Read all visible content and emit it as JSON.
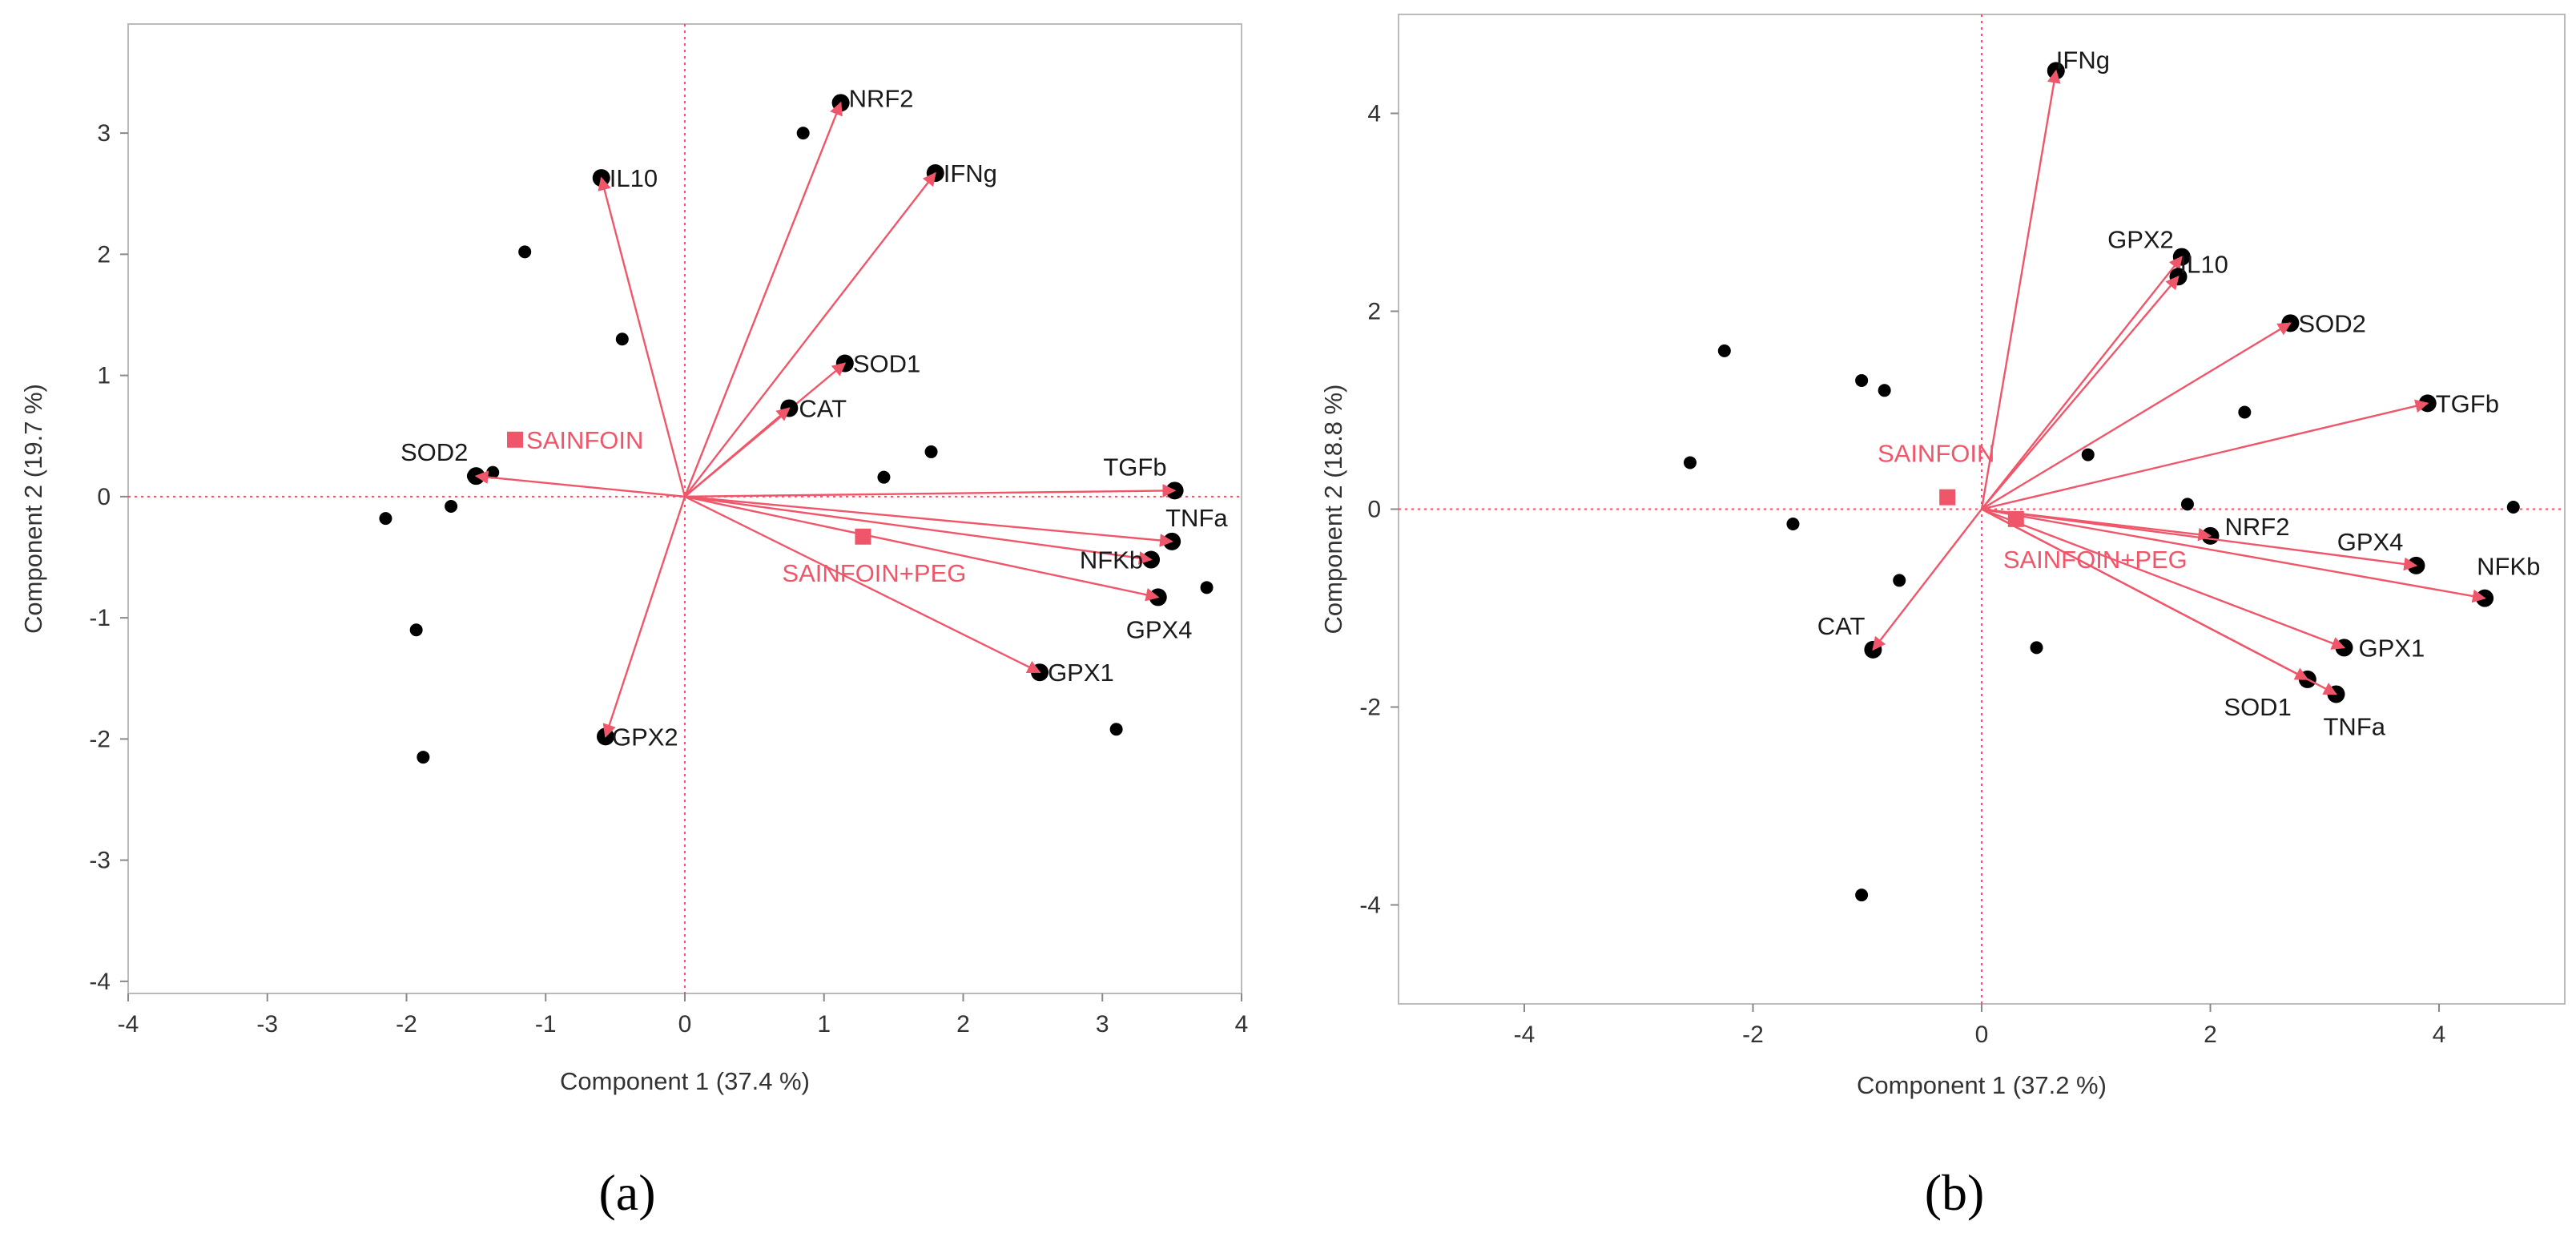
{
  "colors": {
    "arrow": "#f0566a",
    "group": "#f0566a",
    "point": "#000000",
    "axis": "#888888",
    "frame": "#bbbbbb"
  },
  "chart_data": [
    {
      "type": "scatter",
      "subtype": "biplot",
      "panel_label": "(a)",
      "xlabel": "Component 1  (37.4 %)",
      "ylabel": "Component 2  (19.7 %)",
      "xlim": [
        -4,
        4
      ],
      "ylim": [
        -4.1,
        3.9
      ],
      "xticks": [
        "-4",
        "-3",
        "-2",
        "-1",
        "0",
        "1",
        "2",
        "3",
        "4"
      ],
      "xtick_values": [
        -4,
        -3,
        -2,
        -1,
        0,
        1,
        2,
        3,
        4
      ],
      "yticks": [
        "-4",
        "-3",
        "-2",
        "-1",
        "0",
        "1",
        "2",
        "3"
      ],
      "ytick_values": [
        -4,
        -3,
        -2,
        -1,
        0,
        1,
        2,
        3
      ],
      "reference_lines": {
        "x": 0,
        "y": 0
      },
      "scores": [
        [
          -2.15,
          -0.18
        ],
        [
          -1.93,
          -1.1
        ],
        [
          -1.88,
          -2.15
        ],
        [
          -1.68,
          -0.08
        ],
        [
          -1.52,
          0.17
        ],
        [
          -1.38,
          0.2
        ],
        [
          -1.15,
          2.02
        ],
        [
          -0.45,
          1.3
        ],
        [
          0.85,
          3.0
        ],
        [
          1.43,
          0.16
        ],
        [
          1.77,
          0.37
        ],
        [
          3.1,
          -1.92
        ],
        [
          3.75,
          -0.75
        ]
      ],
      "loadings": [
        {
          "name": "NRF2",
          "x": 1.12,
          "y": 3.25,
          "lx": 10,
          "ly": -6,
          "anchor": "start"
        },
        {
          "name": "IFNg",
          "x": 1.8,
          "y": 2.67,
          "lx": 10,
          "ly": 0,
          "anchor": "start"
        },
        {
          "name": "IL10",
          "x": -0.6,
          "y": 2.63,
          "lx": 10,
          "ly": 0,
          "anchor": "start"
        },
        {
          "name": "SOD1",
          "x": 1.15,
          "y": 1.1,
          "lx": 10,
          "ly": 0,
          "anchor": "start"
        },
        {
          "name": "CAT",
          "x": 0.75,
          "y": 0.73,
          "lx": 12,
          "ly": 0,
          "anchor": "start"
        },
        {
          "name": "SOD2",
          "x": -1.5,
          "y": 0.17,
          "lx": -10,
          "ly": -30,
          "anchor": "end"
        },
        {
          "name": "TGFb",
          "x": 3.52,
          "y": 0.05,
          "lx": -10,
          "ly": -30,
          "anchor": "end"
        },
        {
          "name": "TNFa",
          "x": 3.5,
          "y": -0.37,
          "lx": -8,
          "ly": -30,
          "anchor": "start"
        },
        {
          "name": "NFKb",
          "x": 3.35,
          "y": -0.52,
          "lx": -10,
          "ly": 0,
          "anchor": "end"
        },
        {
          "name": "GPX4",
          "x": 3.4,
          "y": -0.83,
          "lx": -40,
          "ly": 40,
          "anchor": "start"
        },
        {
          "name": "GPX1",
          "x": 2.55,
          "y": -1.45,
          "lx": 10,
          "ly": 0,
          "anchor": "start"
        },
        {
          "name": "GPX2",
          "x": -0.57,
          "y": -1.98,
          "lx": 8,
          "ly": 0,
          "anchor": "start"
        }
      ],
      "groups": [
        {
          "name": "SAINFOIN",
          "x": -1.22,
          "y": 0.47,
          "lx": 14,
          "ly": 0,
          "anchor": "start"
        },
        {
          "name": "SAINFOIN+PEG",
          "x": 1.28,
          "y": -0.33,
          "lx": 14,
          "ly": 45,
          "anchor": "middle"
        }
      ]
    },
    {
      "type": "scatter",
      "subtype": "biplot",
      "panel_label": "(b)",
      "xlabel": "Component 1  (37.2 %)",
      "ylabel": "Component 2  (18.8 %)",
      "xlim": [
        -5.1,
        5.1
      ],
      "ylim": [
        -5,
        5
      ],
      "xticks": [
        "-4",
        "-2",
        "0",
        "2",
        "4"
      ],
      "xtick_values": [
        -4,
        -2,
        0,
        2,
        4
      ],
      "yticks": [
        "-4",
        "-2",
        "0",
        "2",
        "4"
      ],
      "ytick_values": [
        -4,
        -2,
        0,
        2,
        4
      ],
      "reference_lines": {
        "x": 0,
        "y": 0
      },
      "scores": [
        [
          -2.55,
          0.47
        ],
        [
          -2.25,
          1.6
        ],
        [
          -1.65,
          -0.15
        ],
        [
          -1.05,
          1.3
        ],
        [
          -0.85,
          1.2
        ],
        [
          -0.72,
          -0.72
        ],
        [
          -1.05,
          -3.9
        ],
        [
          0.48,
          -1.4
        ],
        [
          0.93,
          0.55
        ],
        [
          1.8,
          0.05
        ],
        [
          2.3,
          0.98
        ],
        [
          4.65,
          0.02
        ]
      ],
      "loadings": [
        {
          "name": "IFNg",
          "x": 0.65,
          "y": 4.43,
          "lx": 0,
          "ly": -14,
          "anchor": "start"
        },
        {
          "name": "GPX2",
          "x": 1.75,
          "y": 2.55,
          "lx": -10,
          "ly": -22,
          "anchor": "end"
        },
        {
          "name": "IL10",
          "x": 1.72,
          "y": 2.35,
          "lx": 2,
          "ly": -16,
          "anchor": "start"
        },
        {
          "name": "SOD2",
          "x": 2.7,
          "y": 1.88,
          "lx": 10,
          "ly": 0,
          "anchor": "start"
        },
        {
          "name": "TGFb",
          "x": 3.9,
          "y": 1.07,
          "lx": 10,
          "ly": 0,
          "anchor": "start"
        },
        {
          "name": "NRF2",
          "x": 2.0,
          "y": -0.27,
          "lx": 18,
          "ly": -12,
          "anchor": "start"
        },
        {
          "name": "GPX4",
          "x": 3.8,
          "y": -0.57,
          "lx": -16,
          "ly": -30,
          "anchor": "end"
        },
        {
          "name": "NFKb",
          "x": 4.4,
          "y": -0.9,
          "lx": -10,
          "ly": -40,
          "anchor": "start"
        },
        {
          "name": "GPX1",
          "x": 3.17,
          "y": -1.4,
          "lx": 18,
          "ly": 0,
          "anchor": "start"
        },
        {
          "name": "SOD1",
          "x": 2.85,
          "y": -1.72,
          "lx": -20,
          "ly": 34,
          "anchor": "end"
        },
        {
          "name": "TNFa",
          "x": 3.1,
          "y": -1.87,
          "lx": -16,
          "ly": 40,
          "anchor": "start"
        },
        {
          "name": "CAT",
          "x": -0.95,
          "y": -1.42,
          "lx": -10,
          "ly": -30,
          "anchor": "end"
        }
      ],
      "groups": [
        {
          "name": "SAINFOIN",
          "x": -0.3,
          "y": 0.12,
          "lx": -14,
          "ly": -55,
          "anchor": "middle"
        },
        {
          "name": "SAINFOIN+PEG",
          "x": 0.3,
          "y": -0.1,
          "lx": -16,
          "ly": 50,
          "anchor": "start"
        }
      ]
    }
  ]
}
